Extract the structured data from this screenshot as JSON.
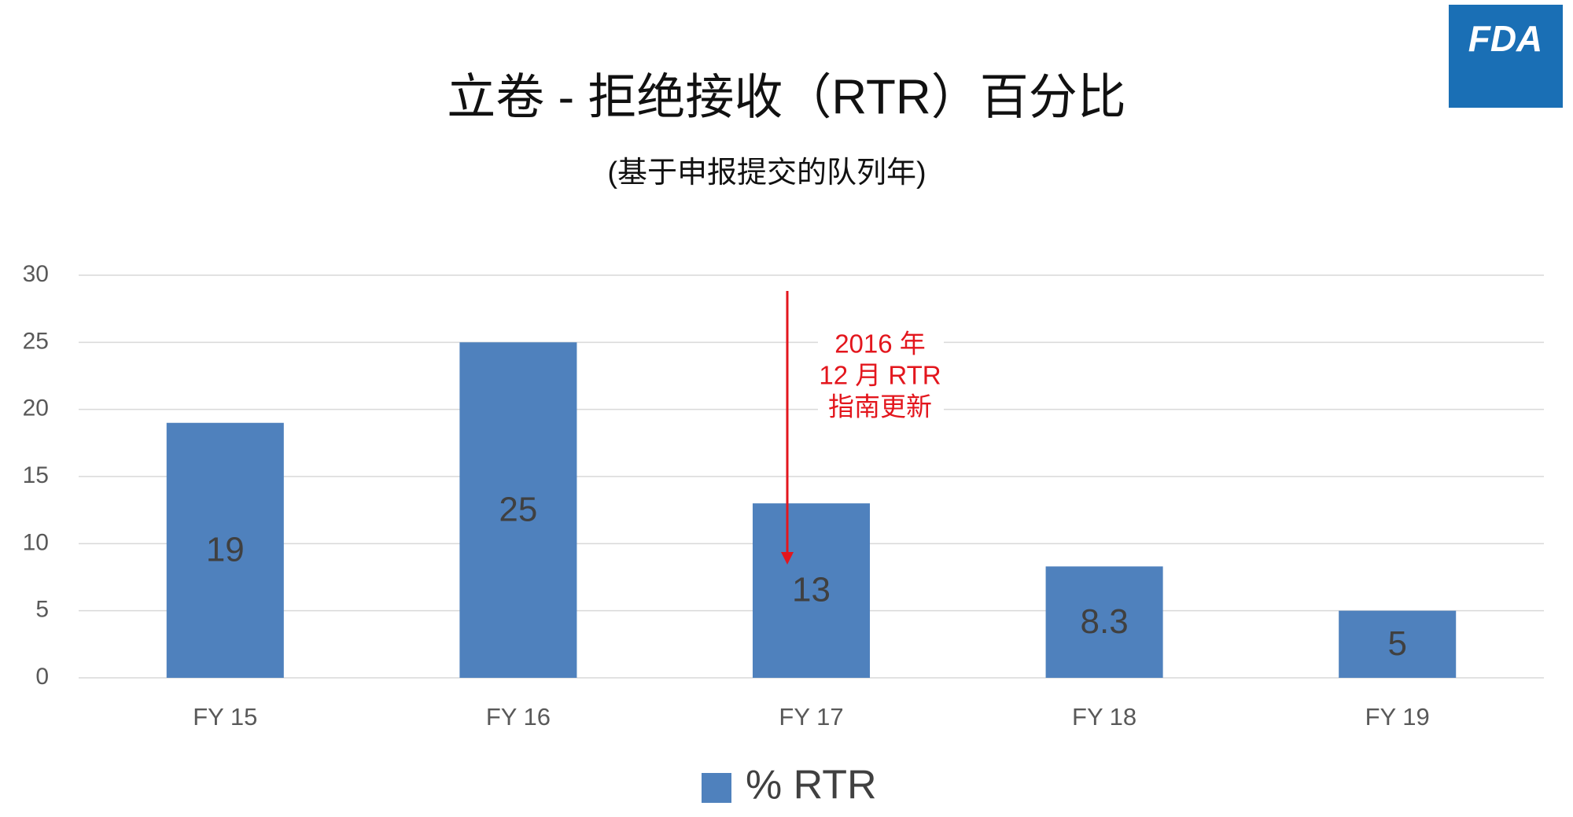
{
  "chart_data": {
    "type": "bar",
    "title": "立卷 - 拒绝接收（RTR）百分比",
    "subtitle": "(基于申报提交的队列年)",
    "logo": "FDA",
    "categories": [
      "FY 15",
      "FY 16",
      "FY 17",
      "FY 18",
      "FY 19"
    ],
    "series": [
      {
        "name": "% RTR",
        "color": "#4f81bd",
        "values": [
          19,
          25,
          13,
          8.3,
          5
        ]
      }
    ],
    "ylim": [
      0,
      30
    ],
    "yticks": [
      0,
      5,
      10,
      15,
      20,
      25,
      30
    ],
    "grid": true,
    "annotation": [
      "2016 年",
      "12 月 RTR",
      "指南更新"
    ]
  }
}
